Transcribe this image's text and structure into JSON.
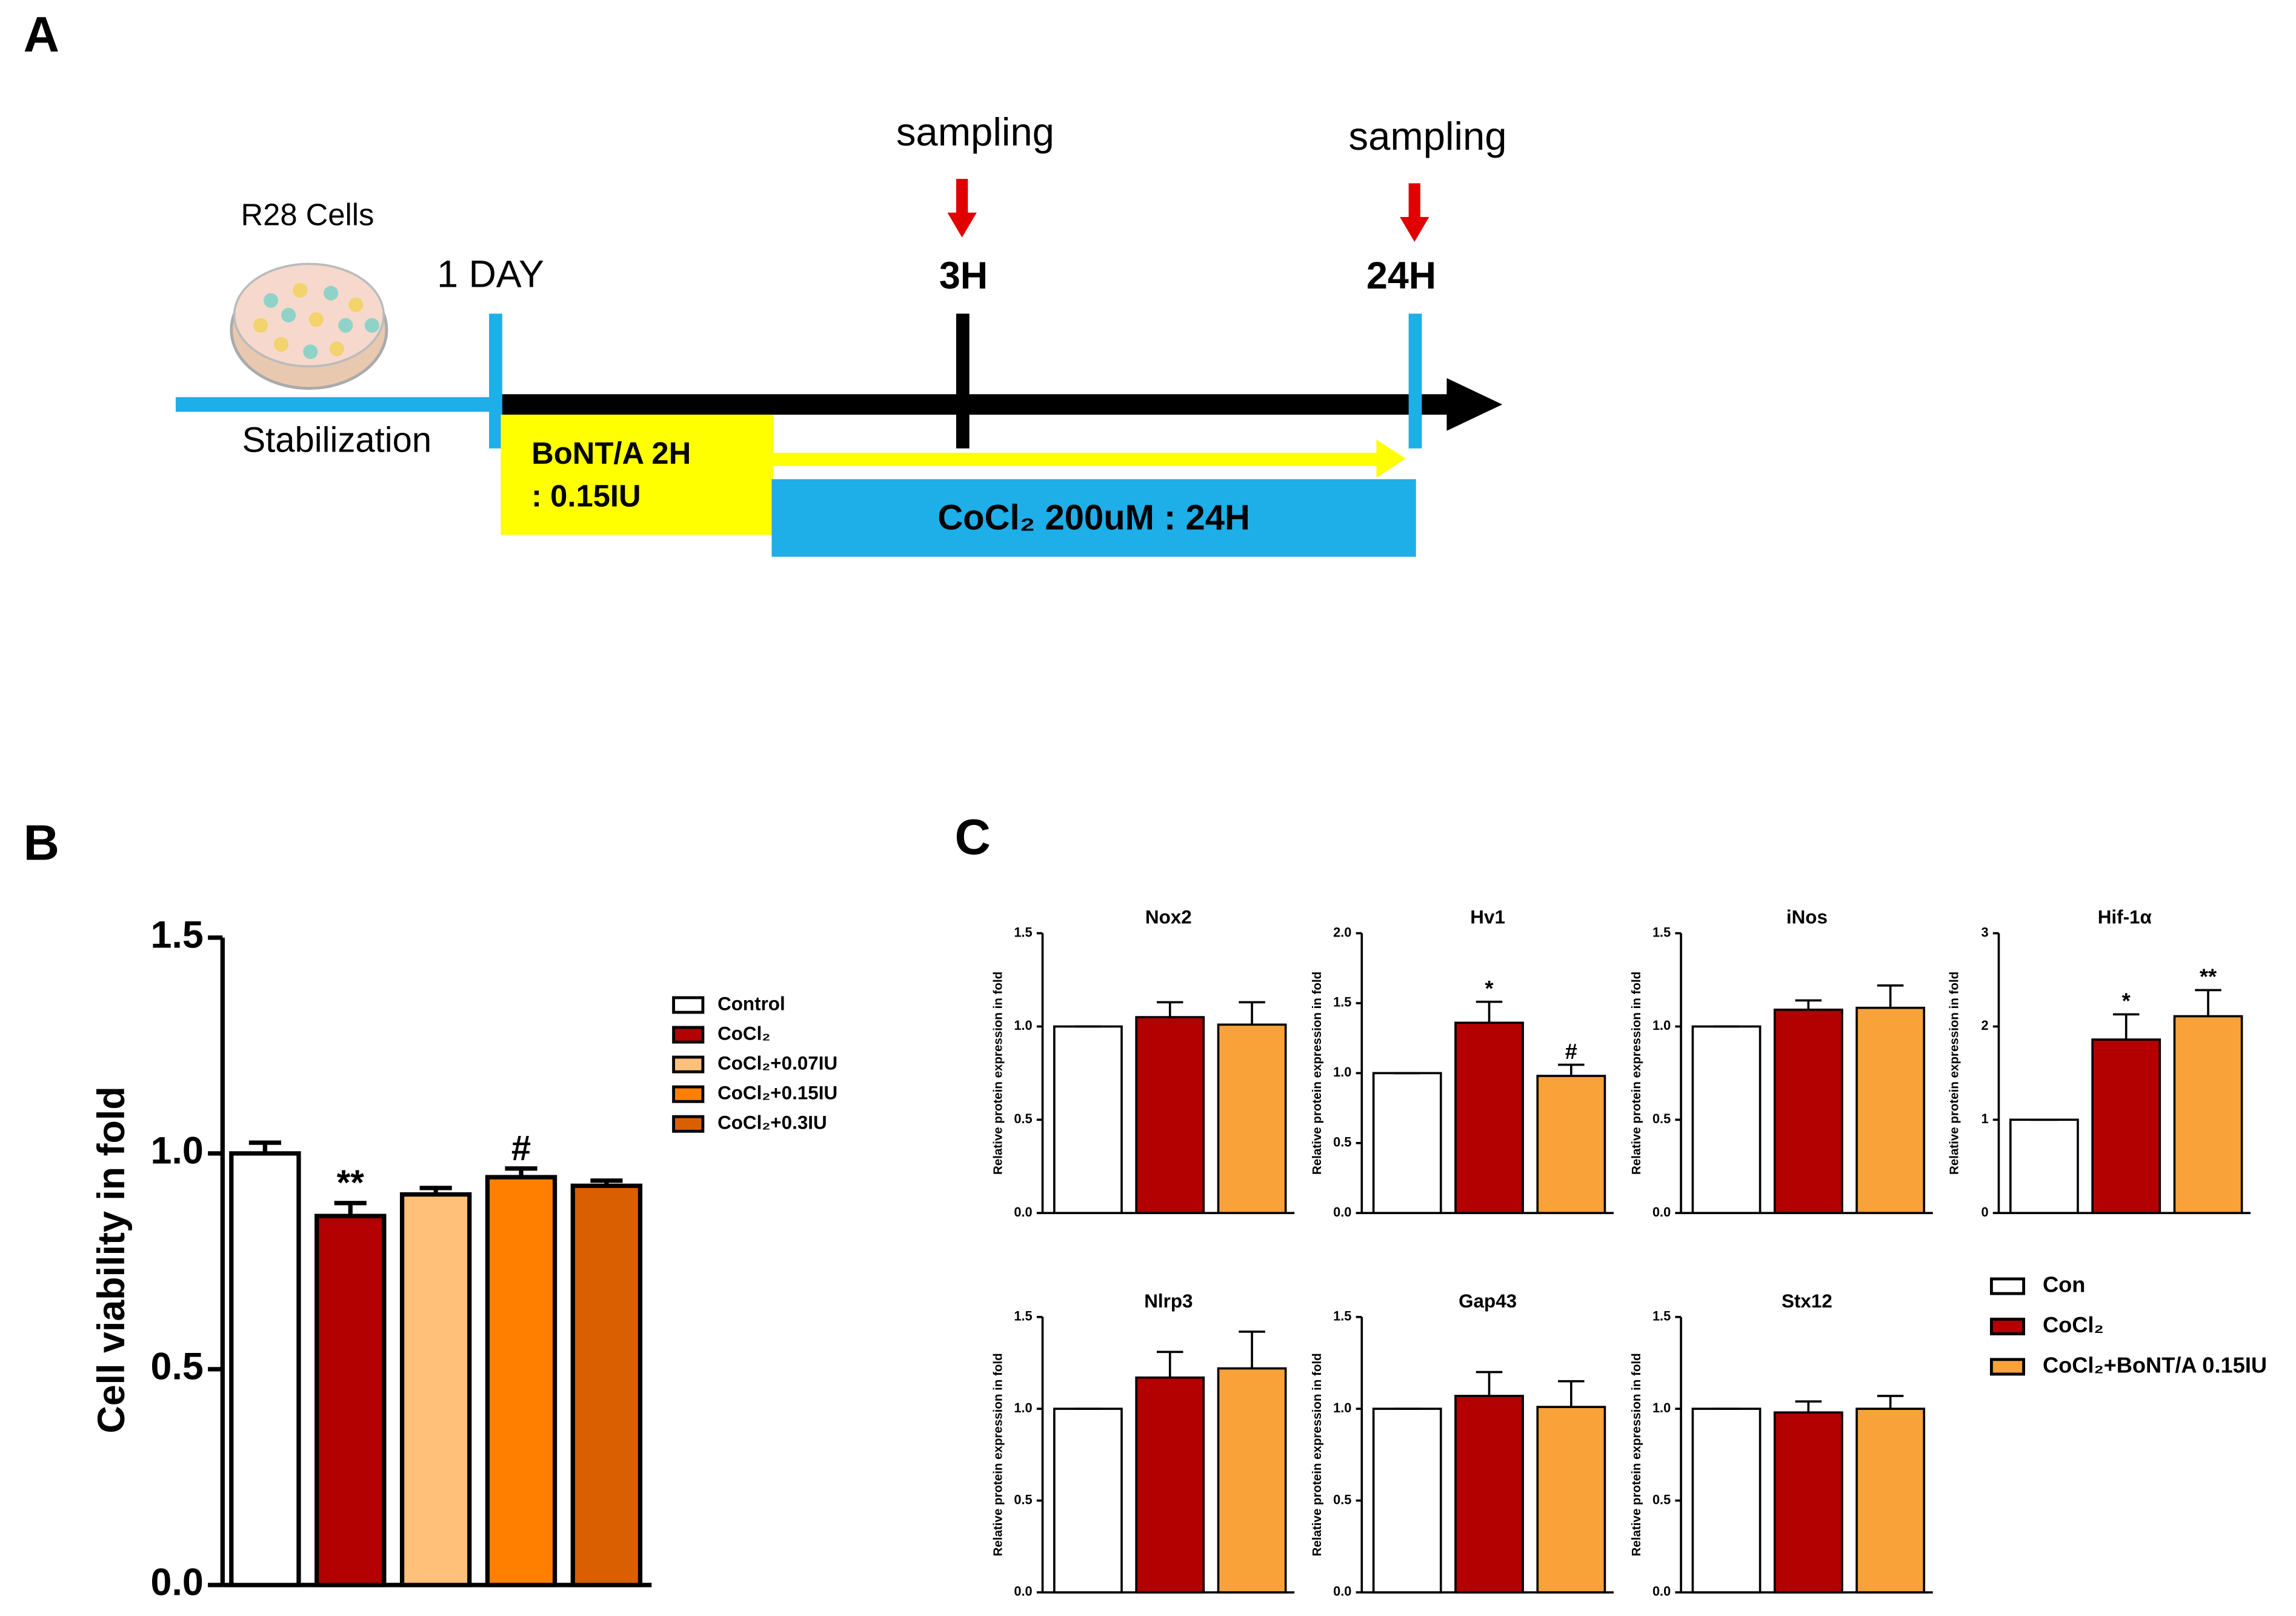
{
  "diagram": {
    "label": "A",
    "cells": "R28 Cells",
    "day": "1 DAY",
    "sampling_1": "sampling",
    "time_1": "3H",
    "sampling_2": "sampling",
    "time_2": "24H",
    "stabilization": "Stabilization",
    "bont_1": "BoNT/A 2H",
    "bont_2": ": 0.15IU",
    "cocl": "CoCl₂ 200uM : 24H"
  },
  "chart_data": [
    {
      "type": "bar",
      "label": "B",
      "ylabel": "Cell viability in fold",
      "ylim": [
        0,
        1.5
      ],
      "yticks": [
        {
          "value": 0,
          "label": "0.0"
        },
        {
          "value": 0.5,
          "label": "0.5"
        },
        {
          "value": 1,
          "label": "1.0"
        },
        {
          "value": 1.5,
          "label": "1.5"
        }
      ],
      "series": [
        {
          "name": "Control",
          "color": "#ffffff",
          "values": [
            1.0
          ],
          "errors": [
            0.025
          ]
        },
        {
          "name": "CoCl₂",
          "color": "#b30000",
          "values": [
            0.855
          ],
          "errors": [
            0.03
          ],
          "annotation": "**"
        },
        {
          "name": "CoCl₂+0.07IU",
          "color": "#ffc07a",
          "values": [
            0.905
          ],
          "errors": [
            0.015
          ]
        },
        {
          "name": "CoCl₂+0.15IU",
          "color": "#ff8000",
          "values": [
            0.945
          ],
          "errors": [
            0.02
          ],
          "annotation": "#"
        },
        {
          "name": "CoCl₂+0.3IU",
          "color": "#d95f00",
          "values": [
            0.925
          ],
          "errors": [
            0.012
          ]
        }
      ]
    },
    {
      "type": "bar-panels",
      "label": "C",
      "ylabel": "Relative protein expression in fold",
      "series": [
        {
          "name": "Con",
          "color": "#ffffff"
        },
        {
          "name": "CoCl₂",
          "color": "#b30000"
        },
        {
          "name": "CoCl₂+BoNT/A 0.15IU",
          "color": "#f9a23a"
        }
      ],
      "panels": [
        {
          "title": "Nox2",
          "ylim": [
            0,
            1.5
          ],
          "yticks": [
            {
              "value": 0,
              "label": "0.0"
            },
            {
              "value": 0.5,
              "label": "0.5"
            },
            {
              "value": 1,
              "label": "1.0"
            },
            {
              "value": 1.5,
              "label": "1.5"
            }
          ],
          "values": [
            1.0,
            1.05,
            1.01
          ],
          "errors": [
            0,
            0.08,
            0.12
          ],
          "annotations": [
            null,
            null,
            null
          ]
        },
        {
          "title": "Hv1",
          "ylim": [
            0,
            2
          ],
          "yticks": [
            {
              "value": 0,
              "label": "0.0"
            },
            {
              "value": 0.5,
              "label": "0.5"
            },
            {
              "value": 1,
              "label": "1.0"
            },
            {
              "value": 1.5,
              "label": "1.5"
            },
            {
              "value": 2,
              "label": "2.0"
            }
          ],
          "values": [
            1.0,
            1.36,
            0.98
          ],
          "errors": [
            0,
            0.15,
            0.08
          ],
          "annotations": [
            null,
            "*",
            "#"
          ]
        },
        {
          "title": "iNos",
          "ylim": [
            0,
            1.5
          ],
          "yticks": [
            {
              "value": 0,
              "label": "0.0"
            },
            {
              "value": 0.5,
              "label": "0.5"
            },
            {
              "value": 1,
              "label": "1.0"
            },
            {
              "value": 1.5,
              "label": "1.5"
            }
          ],
          "values": [
            1.0,
            1.09,
            1.1
          ],
          "errors": [
            0,
            0.05,
            0.12
          ],
          "annotations": [
            null,
            null,
            null
          ]
        },
        {
          "title": "Hif-1α",
          "ylim": [
            0,
            3
          ],
          "yticks": [
            0,
            1,
            2,
            3
          ],
          "values": [
            1.0,
            1.86,
            2.11
          ],
          "errors": [
            0,
            0.27,
            0.28
          ],
          "annotations": [
            null,
            "*",
            "**"
          ]
        },
        {
          "title": "Nlrp3",
          "ylim": [
            0,
            1.5
          ],
          "yticks": [
            {
              "value": 0,
              "label": "0.0"
            },
            {
              "value": 0.5,
              "label": "0.5"
            },
            {
              "value": 1,
              "label": "1.0"
            },
            {
              "value": 1.5,
              "label": "1.5"
            }
          ],
          "values": [
            1.0,
            1.17,
            1.22
          ],
          "errors": [
            0,
            0.14,
            0.2
          ],
          "annotations": [
            null,
            null,
            null
          ]
        },
        {
          "title": "Gap43",
          "ylim": [
            0,
            1.5
          ],
          "yticks": [
            {
              "value": 0,
              "label": "0.0"
            },
            {
              "value": 0.5,
              "label": "0.5"
            },
            {
              "value": 1,
              "label": "1.0"
            },
            {
              "value": 1.5,
              "label": "1.5"
            }
          ],
          "values": [
            1.0,
            1.07,
            1.01
          ],
          "errors": [
            0,
            0.13,
            0.14
          ],
          "annotations": [
            null,
            null,
            null
          ]
        },
        {
          "title": "Stx12",
          "ylim": [
            0,
            1.5
          ],
          "yticks": [
            {
              "value": 0,
              "label": "0.0"
            },
            {
              "value": 0.5,
              "label": "0.5"
            },
            {
              "value": 1,
              "label": "1.0"
            },
            {
              "value": 1.5,
              "label": "1.5"
            }
          ],
          "values": [
            1.0,
            0.98,
            1.0
          ],
          "errors": [
            0,
            0.06,
            0.07
          ],
          "annotations": [
            null,
            null,
            null
          ]
        }
      ]
    }
  ]
}
